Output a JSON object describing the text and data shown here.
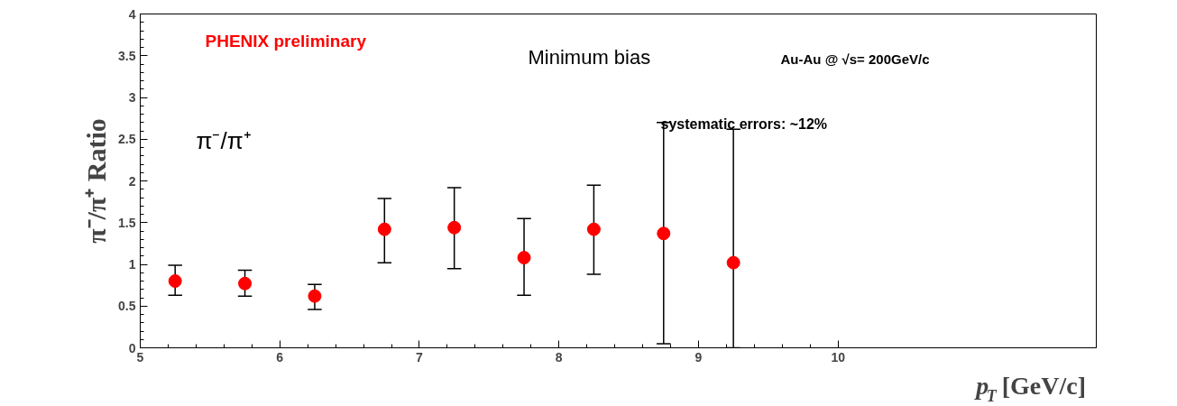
{
  "chart_data": {
    "type": "scatter",
    "xlabel": "p$_{T}$ [GeV/c]",
    "ylabel": "π⁻/π⁺ Ratio",
    "x": [
      5.25,
      5.75,
      6.25,
      6.75,
      7.25,
      7.75,
      8.25,
      8.75,
      9.25
    ],
    "series": [
      {
        "color": "#ff0000",
        "values": [
          0.8,
          0.77,
          0.62,
          1.42,
          1.44,
          1.08,
          1.42,
          1.37,
          1.02
        ],
        "errors": [
          [
            0.63,
            0.99
          ],
          [
            0.62,
            0.93
          ],
          [
            0.46,
            0.76
          ],
          [
            1.02,
            1.79
          ],
          [
            0.95,
            1.92
          ],
          [
            0.63,
            1.55
          ],
          [
            0.88,
            1.95
          ],
          [
            0.05,
            2.7
          ],
          [
            0.0,
            2.62
          ]
        ]
      }
    ],
    "marker": "circle",
    "xlim": [
      5,
      11.85
    ],
    "ylim": [
      0,
      4
    ],
    "xticks": [
      5,
      6,
      7,
      8,
      9,
      10
    ],
    "yticks": [
      0,
      0.5,
      1,
      1.5,
      2,
      2.5,
      3,
      3.5,
      4
    ],
    "grid": false,
    "annotations": [
      "PHENIX preliminary",
      "Minimum bias",
      "Au-Au @ √s= 200GeV/c",
      "π⁻/π⁺",
      "systematic errors: ~12%"
    ]
  }
}
